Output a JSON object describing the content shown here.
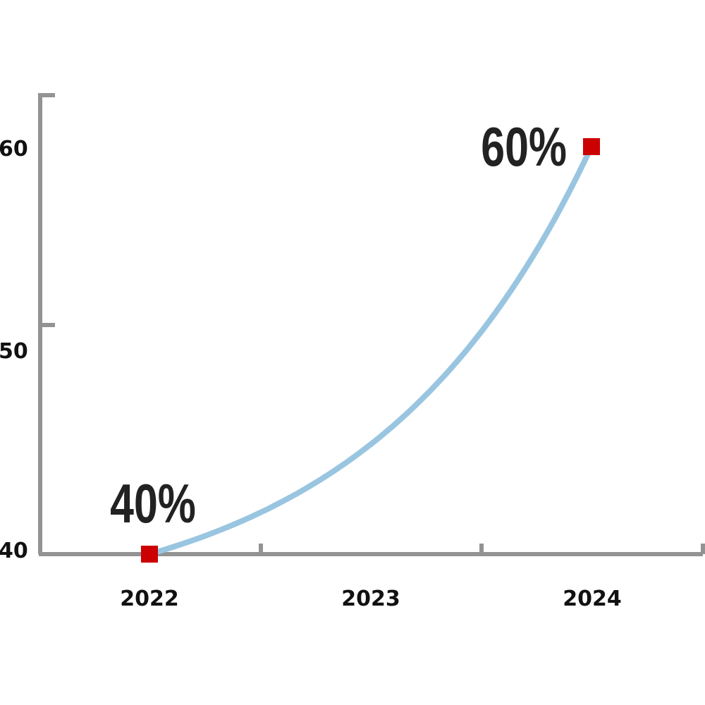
{
  "chart_data": {
    "type": "line",
    "title": "",
    "xlabel": "",
    "ylabel": "",
    "categories": [
      "2022",
      "2023",
      "2024"
    ],
    "y_tick_labels": [
      "40",
      "50",
      "60"
    ],
    "ylim": [
      40,
      62.5
    ],
    "grid": false,
    "series": [
      {
        "points": [
          {
            "x": "2022",
            "y": 40,
            "label": "40%"
          },
          {
            "x": "2024",
            "y": 60,
            "label": "60%"
          }
        ],
        "curve": "exponential"
      }
    ],
    "colors": {
      "line": "#99c5e0",
      "marker": "#cc0000",
      "axis": "#939393",
      "label": "#222222"
    }
  }
}
